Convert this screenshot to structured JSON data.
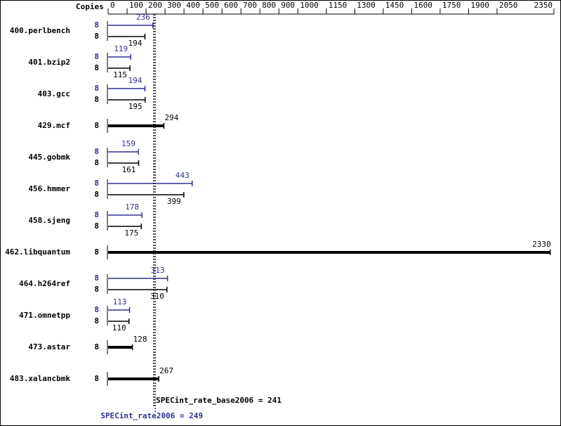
{
  "chart_data": {
    "type": "bar",
    "orientation": "horizontal",
    "copies_label": "Copies",
    "categories": [
      "400.perlbench",
      "401.bzip2",
      "403.gcc",
      "429.mcf",
      "445.gobmk",
      "456.hmmer",
      "458.sjeng",
      "462.libquantum",
      "464.h264ref",
      "471.omnetpp",
      "473.astar",
      "483.xalancbmk"
    ],
    "series": [
      {
        "color": "#303095",
        "copies": [
          8,
          8,
          8,
          null,
          8,
          8,
          8,
          null,
          8,
          8,
          null,
          null
        ],
        "values": [
          236,
          119,
          194,
          null,
          159,
          443,
          178,
          null,
          313,
          113,
          null,
          null
        ]
      },
      {
        "color": "#000000",
        "copies": [
          8,
          8,
          8,
          8,
          8,
          8,
          8,
          8,
          8,
          8,
          8,
          8
        ],
        "values": [
          194,
          115,
          195,
          294,
          161,
          399,
          175,
          2330,
          310,
          110,
          128,
          267
        ]
      }
    ],
    "xlim": [
      0,
      2350
    ],
    "xticks": [
      0,
      100,
      200,
      300,
      400,
      500,
      600,
      700,
      800,
      900,
      1000,
      1150,
      1300,
      1450,
      1600,
      1750,
      1900,
      2050,
      2350
    ],
    "reference_lines": [
      {
        "value": 241,
        "label": "SPECint_rate_base2006 = 241",
        "color": "#000000"
      },
      {
        "value": 249,
        "label": "SPECint_rate2006 = 249",
        "color": "#303095"
      }
    ]
  }
}
